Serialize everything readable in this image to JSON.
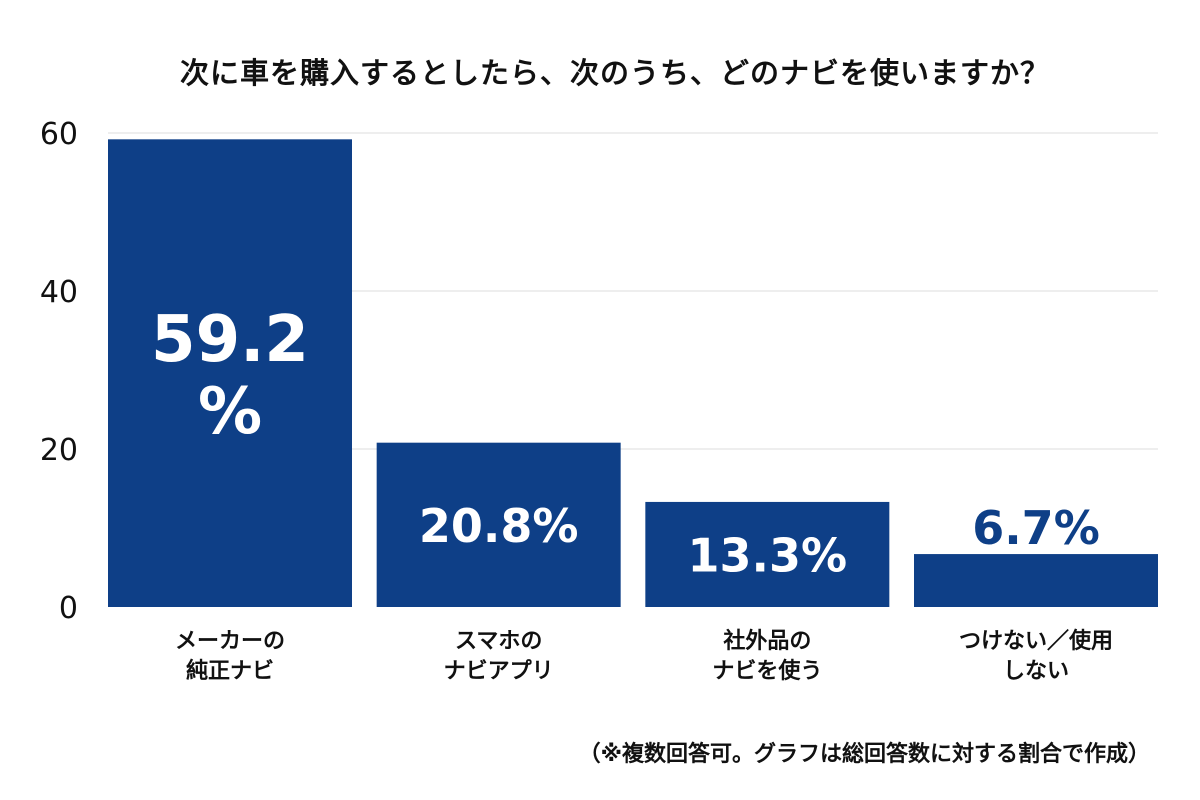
{
  "chart_data": {
    "type": "bar",
    "title": "次に車を購入するとしたら、次のうち、どのナビを使いますか？",
    "categories": [
      [
        "メーカーの",
        "純正ナビ"
      ],
      [
        "スマホの",
        "ナビアプリ"
      ],
      [
        "社外品の",
        "ナビを使う"
      ],
      [
        "つけない／使用",
        "しない"
      ]
    ],
    "values": [
      59.2,
      20.8,
      13.3,
      6.7
    ],
    "data_labels": [
      [
        "59.2",
        "%"
      ],
      [
        "20.8%"
      ],
      [
        "13.3%"
      ],
      [
        "6.7%"
      ]
    ],
    "ylim": [
      0,
      60
    ],
    "yticks": [
      0,
      20,
      40,
      60
    ],
    "grid": true,
    "xlabel": "",
    "ylabel": "",
    "bar_color": "#0e3f87",
    "footnote": "（※複数回答可。グラフは総回答数に対する割合で作成）"
  }
}
